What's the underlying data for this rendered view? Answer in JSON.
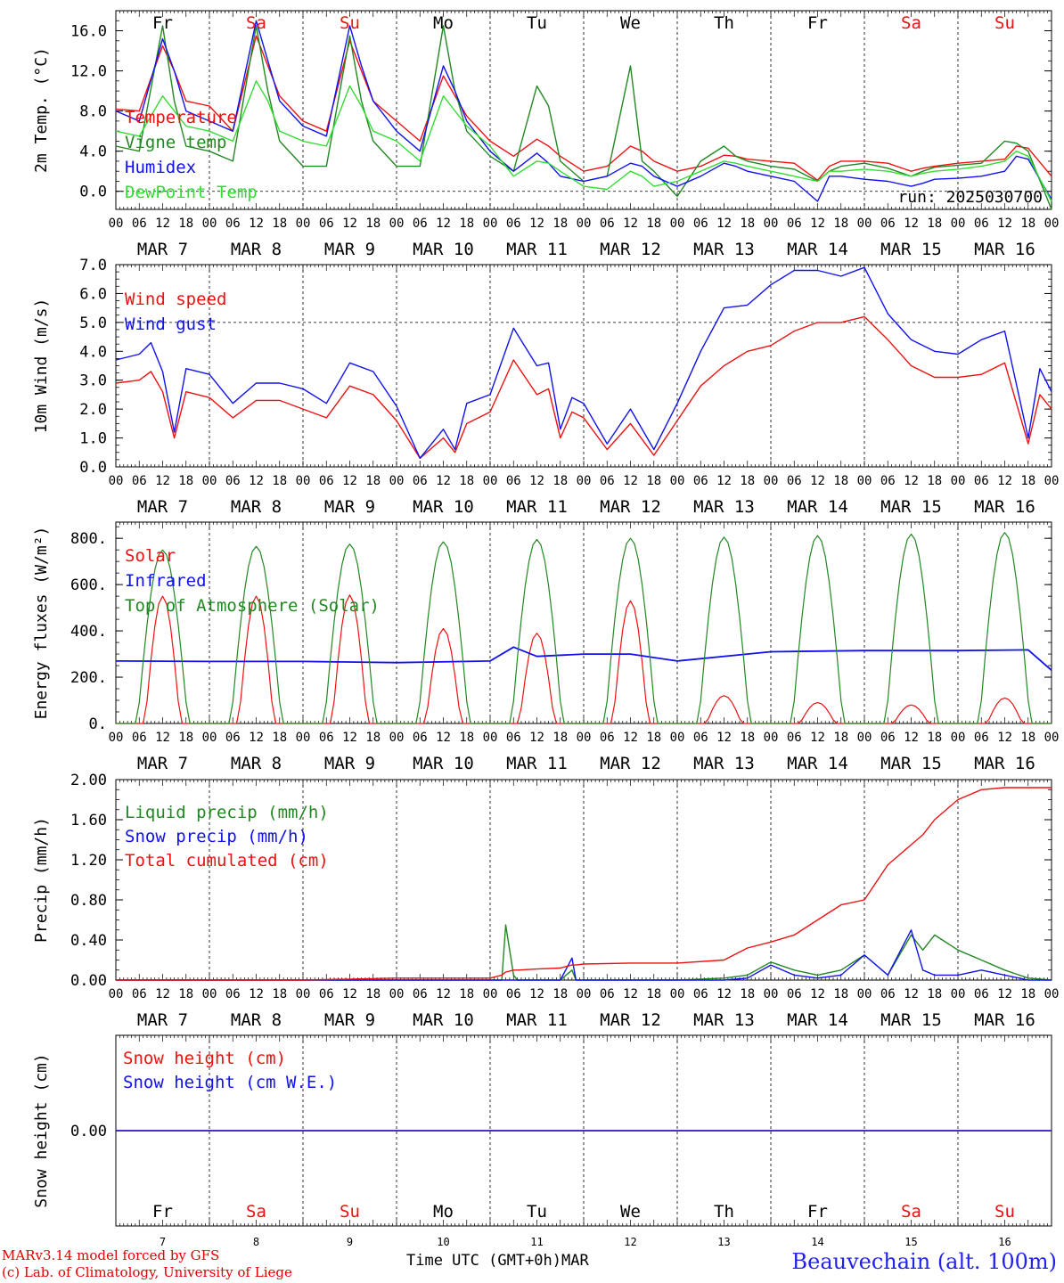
{
  "footer": {
    "credit_line_1": "MARv3.14 model forced by GFS",
    "credit_line_2": "(c) Lab. of Climatology, University of Liege",
    "time_axis_label": "Time UTC (GMT+0h)MAR",
    "station": "Beauvechain (alt. 100m)"
  },
  "days": {
    "weekday_labels": [
      "Fr",
      "Sa",
      "Su",
      "Mo",
      "Tu",
      "We",
      "Th",
      "Fr",
      "Sa",
      "Su"
    ],
    "weekend_flags": [
      false,
      true,
      true,
      false,
      false,
      false,
      false,
      false,
      true,
      true
    ],
    "date_labels": [
      "MAR  7",
      "MAR  8",
      "MAR  9",
      "MAR 10",
      "MAR 11",
      "MAR 12",
      "MAR 13",
      "MAR 14",
      "MAR 15",
      "MAR 16"
    ],
    "day_numbers": [
      "7",
      "8",
      "9",
      "10",
      "11",
      "12",
      "13",
      "14",
      "15",
      "16"
    ],
    "hour_ticks": [
      "00",
      "06",
      "12",
      "18"
    ],
    "final_tick": "00"
  },
  "colors": {
    "red": "#ee1111",
    "green": "#228822",
    "blue": "#1111ee",
    "light_green": "#33dd33",
    "weekend": "#ee1111",
    "weekday": "#000000"
  },
  "chart_data": [
    {
      "id": "temperature",
      "type": "line",
      "ylabel": "2m Temp. (°C)",
      "ylim": [
        -1.8,
        18.0
      ],
      "yticks": [
        0.0,
        4.0,
        8.0,
        12.0,
        16.0
      ],
      "ytick_labels": [
        "0.0",
        "4.0",
        "8.0",
        "12.0",
        "16.0"
      ],
      "dashed_ref": 0.0,
      "annotation": "run: 2025030700",
      "x_hours": [
        0,
        6,
        12,
        15,
        18,
        24,
        30,
        36,
        39,
        42,
        48,
        54,
        60,
        63,
        66,
        72,
        78,
        84,
        87,
        90,
        96,
        102,
        108,
        111,
        114,
        120,
        126,
        132,
        135,
        138,
        144,
        150,
        156,
        159,
        162,
        168,
        174,
        180,
        183,
        186,
        192,
        198,
        204,
        207,
        210,
        216,
        222,
        228,
        231,
        234,
        240
      ],
      "series": [
        {
          "name": "Temperature",
          "color": "red",
          "values": [
            8.2,
            8.0,
            14.5,
            12.0,
            9.0,
            8.5,
            6.0,
            15.5,
            12.5,
            9.5,
            7.0,
            6.0,
            15.0,
            12.0,
            9.0,
            7.0,
            5.0,
            11.5,
            9.5,
            7.5,
            5.0,
            3.5,
            5.2,
            4.5,
            3.5,
            2.0,
            2.5,
            4.5,
            4.0,
            3.0,
            2.0,
            2.5,
            3.6,
            3.5,
            3.2,
            3.0,
            2.8,
            1.1,
            2.5,
            3.0,
            3.0,
            2.8,
            2.0,
            2.3,
            2.5,
            2.8,
            3.0,
            3.2,
            4.5,
            4.3,
            1.5
          ]
        },
        {
          "name": "Vigne temp",
          "color": "green",
          "values": [
            4.5,
            4.0,
            16.5,
            9.0,
            4.5,
            4.0,
            3.0,
            16.5,
            10.0,
            5.0,
            2.5,
            2.5,
            15.5,
            9.0,
            5.0,
            2.5,
            2.5,
            16.5,
            10.0,
            6.0,
            3.5,
            2.0,
            10.5,
            8.5,
            3.0,
            1.0,
            1.5,
            12.5,
            3.0,
            2.0,
            -0.5,
            3.0,
            4.5,
            3.5,
            3.0,
            2.5,
            2.2,
            1.0,
            2.0,
            2.5,
            2.8,
            2.3,
            1.5,
            2.0,
            2.4,
            2.6,
            2.8,
            5.0,
            4.8,
            4.0,
            -1.8
          ]
        },
        {
          "name": "Humidex",
          "color": "blue",
          "values": [
            8.0,
            7.0,
            15.2,
            12.0,
            8.0,
            7.0,
            6.0,
            17.0,
            13.0,
            9.0,
            6.5,
            5.5,
            16.5,
            12.5,
            9.0,
            6.0,
            4.0,
            12.5,
            10.0,
            7.0,
            4.0,
            2.0,
            3.8,
            2.8,
            1.5,
            1.0,
            1.5,
            2.8,
            2.5,
            1.5,
            0.5,
            1.5,
            2.8,
            2.5,
            2.0,
            1.5,
            1.0,
            -1.0,
            1.5,
            1.5,
            1.2,
            1.0,
            0.5,
            0.8,
            1.2,
            1.3,
            1.5,
            2.0,
            3.5,
            3.2,
            -0.8
          ]
        },
        {
          "name": "DewPoint Temp",
          "color": "light_green",
          "values": [
            6.0,
            5.5,
            9.5,
            8.0,
            6.5,
            6.0,
            5.0,
            11.0,
            9.0,
            6.0,
            5.0,
            4.5,
            10.5,
            8.5,
            6.0,
            5.0,
            3.0,
            9.5,
            8.0,
            6.5,
            4.5,
            1.5,
            3.0,
            2.8,
            2.0,
            0.5,
            0.2,
            2.0,
            1.5,
            0.5,
            1.0,
            2.0,
            3.0,
            2.8,
            2.5,
            2.0,
            1.5,
            1.0,
            2.0,
            2.0,
            2.2,
            2.0,
            1.5,
            1.8,
            2.0,
            2.2,
            2.5,
            3.0,
            4.0,
            3.5,
            -1.0
          ]
        }
      ]
    },
    {
      "id": "wind",
      "type": "line",
      "ylabel": "10m Wind (m/s)",
      "ylim": [
        0.0,
        7.0
      ],
      "yticks": [
        0.0,
        1.0,
        2.0,
        3.0,
        4.0,
        5.0,
        6.0,
        7.0
      ],
      "ytick_labels": [
        "0.0",
        "1.0",
        "2.0",
        "3.0",
        "4.0",
        "5.0",
        "6.0",
        "7.0"
      ],
      "dashed_ref": 5.0,
      "x_hours": [
        0,
        6,
        9,
        12,
        15,
        18,
        24,
        30,
        36,
        42,
        48,
        54,
        60,
        66,
        72,
        78,
        84,
        87,
        90,
        96,
        102,
        108,
        111,
        114,
        117,
        120,
        126,
        132,
        138,
        144,
        150,
        156,
        162,
        168,
        174,
        180,
        186,
        192,
        198,
        204,
        210,
        216,
        222,
        228,
        234,
        237,
        240
      ],
      "series": [
        {
          "name": "Wind speed",
          "color": "red",
          "values": [
            2.9,
            3.0,
            3.3,
            2.6,
            1.0,
            2.6,
            2.4,
            1.7,
            2.3,
            2.3,
            2.0,
            1.7,
            2.8,
            2.5,
            1.6,
            0.3,
            1.0,
            0.5,
            1.5,
            1.9,
            3.7,
            2.5,
            2.7,
            1.0,
            1.9,
            1.7,
            0.6,
            1.5,
            0.4,
            1.6,
            2.8,
            3.5,
            4.0,
            4.2,
            4.7,
            5.0,
            5.0,
            5.2,
            4.4,
            3.5,
            3.1,
            3.1,
            3.2,
            3.6,
            0.8,
            2.5,
            2.0
          ]
        },
        {
          "name": "Wind gust",
          "color": "blue",
          "values": [
            3.7,
            3.9,
            4.3,
            3.3,
            1.2,
            3.4,
            3.2,
            2.2,
            2.9,
            2.9,
            2.7,
            2.2,
            3.6,
            3.3,
            2.1,
            0.3,
            1.3,
            0.6,
            2.2,
            2.5,
            4.8,
            3.5,
            3.6,
            1.3,
            2.4,
            2.2,
            0.8,
            2.0,
            0.6,
            2.2,
            4.0,
            5.5,
            5.6,
            6.3,
            6.8,
            6.8,
            6.6,
            6.9,
            5.3,
            4.4,
            4.0,
            3.9,
            4.4,
            4.7,
            1.0,
            3.4,
            2.6
          ]
        }
      ]
    },
    {
      "id": "energy",
      "type": "line",
      "ylabel": "Energy fluxes (W/m²)",
      "ylim": [
        0,
        870
      ],
      "yticks": [
        0,
        200,
        400,
        600,
        800
      ],
      "ytick_labels": [
        "0.",
        "200.",
        "400.",
        "600.",
        "800."
      ],
      "series": [
        {
          "name": "Solar",
          "color": "red",
          "daily_peak": [
            550,
            550,
            555,
            410,
            390,
            530,
            120,
            90,
            80,
            110
          ]
        },
        {
          "name": "Infrared",
          "color": "blue",
          "x_hours": [
            0,
            24,
            48,
            72,
            96,
            102,
            108,
            120,
            132,
            144,
            168,
            192,
            216,
            234,
            240
          ],
          "values": [
            270,
            268,
            268,
            263,
            270,
            330,
            290,
            300,
            300,
            270,
            310,
            315,
            315,
            318,
            230
          ]
        },
        {
          "name": "Top of Atmosphere (Solar)",
          "color": "green",
          "daily_peak": [
            750,
            765,
            775,
            785,
            795,
            800,
            805,
            812,
            818,
            825
          ]
        }
      ]
    },
    {
      "id": "precip",
      "type": "line",
      "ylabel": "Precip (mm/h)",
      "ylim": [
        0.0,
        2.0
      ],
      "yticks": [
        0.0,
        0.4,
        0.8,
        1.2,
        1.6,
        2.0
      ],
      "ytick_labels": [
        "0.00",
        "0.40",
        "0.80",
        "1.20",
        "1.60",
        "2.00"
      ],
      "x_hours": [
        0,
        24,
        48,
        72,
        96,
        99,
        100,
        102,
        103,
        108,
        114,
        117,
        118,
        120,
        132,
        144,
        156,
        162,
        168,
        174,
        180,
        186,
        192,
        198,
        204,
        207,
        210,
        216,
        222,
        228,
        234,
        240
      ],
      "series": [
        {
          "name": "Liquid precip (mm/h)",
          "color": "green",
          "values": [
            0,
            0,
            0,
            0,
            0,
            0,
            0.55,
            0.05,
            0,
            0,
            0,
            0.1,
            0,
            0,
            0,
            0,
            0.02,
            0.05,
            0.18,
            0.1,
            0.05,
            0.1,
            0.25,
            0.05,
            0.45,
            0.3,
            0.45,
            0.3,
            0.2,
            0.1,
            0.02,
            0.0
          ]
        },
        {
          "name": "Snow precip (mm/h)",
          "color": "blue",
          "values": [
            0,
            0,
            0,
            0,
            0,
            0,
            0,
            0,
            0,
            0,
            0,
            0.22,
            0,
            0,
            0,
            0,
            0,
            0.02,
            0.15,
            0.05,
            0.02,
            0.05,
            0.25,
            0.05,
            0.5,
            0.1,
            0.05,
            0.05,
            0.1,
            0.05,
            0,
            0
          ]
        },
        {
          "name": "Total cumulated (cm)",
          "color": "red",
          "values": [
            0,
            0,
            0,
            0.02,
            0.02,
            0.05,
            0.08,
            0.1,
            0.1,
            0.11,
            0.12,
            0.15,
            0.15,
            0.16,
            0.17,
            0.17,
            0.2,
            0.32,
            0.38,
            0.45,
            0.6,
            0.75,
            0.8,
            1.15,
            1.35,
            1.45,
            1.6,
            1.8,
            1.9,
            1.92,
            1.92,
            1.92
          ]
        }
      ]
    },
    {
      "id": "snow",
      "type": "line",
      "ylabel": "Snow height (cm)",
      "ylim": [
        -1,
        1
      ],
      "yticks": [
        0
      ],
      "ytick_labels": [
        "0.00"
      ],
      "x_hours": [
        0,
        240
      ],
      "series": [
        {
          "name": "Snow height (cm)",
          "color": "red",
          "values": [
            0,
            0
          ]
        },
        {
          "name": "Snow height (cm W.E.)",
          "color": "blue",
          "values": [
            0,
            0
          ]
        }
      ]
    }
  ]
}
